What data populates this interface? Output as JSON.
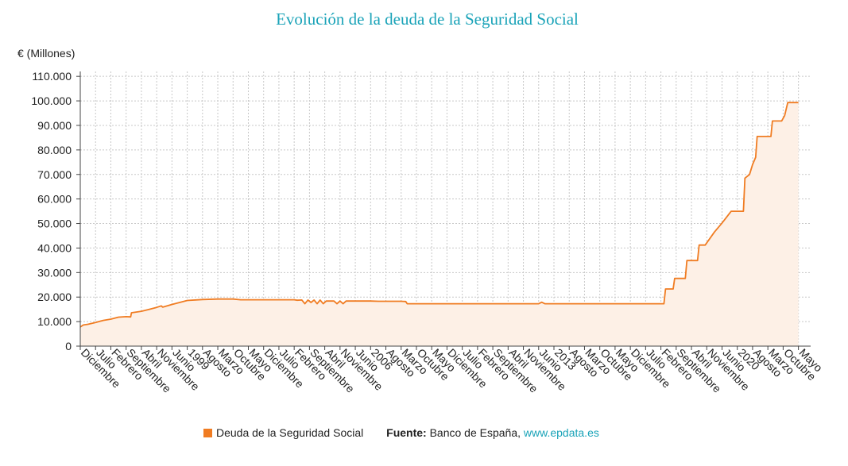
{
  "chart_data": {
    "type": "area",
    "title": "Evolución de la deuda de la Seguridad Social",
    "ylabel": "€ (Millones)",
    "ylim": [
      0,
      112000
    ],
    "yticks": [
      0,
      10000,
      20000,
      30000,
      40000,
      50000,
      60000,
      70000,
      80000,
      90000,
      100000,
      110000
    ],
    "ytick_labels": [
      "0",
      "10.000",
      "20.000",
      "30.000",
      "40.000",
      "50.000",
      "60.000",
      "70.000",
      "80.000",
      "90.000",
      "100.000",
      "110.000"
    ],
    "x_tick_labels": [
      "Diciembre",
      "Julio",
      "Febrero",
      "Septiembre",
      "Abril",
      "Noviembre",
      "Junio",
      "1999",
      "Agosto",
      "Marzo",
      "Octubre",
      "Mayo",
      "Diciembre",
      "Julio",
      "Febrero",
      "Septiembre",
      "Abril",
      "Noviembre",
      "Junio",
      "2006",
      "Agosto",
      "Marzo",
      "Octubre",
      "Mayo",
      "Diciembre",
      "Julio",
      "Febrero",
      "Septiembre",
      "Abril",
      "Noviembre",
      "Junio",
      "2013",
      "Agosto",
      "Marzo",
      "Octubre",
      "Mayo",
      "Diciembre",
      "Julio",
      "Febrero",
      "Septiembre",
      "Abril",
      "Noviembre",
      "Junio",
      "2020",
      "Agosto",
      "Marzo",
      "Octubre",
      "Mayo"
    ],
    "xlim": [
      0,
      47.8
    ],
    "series": [
      {
        "name": "Deuda de la Seguridad Social",
        "color": "#f07c22",
        "fill": "#fdf0e6",
        "points": [
          [
            0,
            7800
          ],
          [
            0.2,
            8600
          ],
          [
            0.5,
            8900
          ],
          [
            1.0,
            9600
          ],
          [
            1.5,
            10500
          ],
          [
            2.0,
            11000
          ],
          [
            2.5,
            11800
          ],
          [
            3.0,
            12000
          ],
          [
            3.3,
            11900
          ],
          [
            3.35,
            13600
          ],
          [
            4.0,
            14200
          ],
          [
            4.5,
            15000
          ],
          [
            5.0,
            15800
          ],
          [
            5.3,
            16400
          ],
          [
            5.4,
            15900
          ],
          [
            6.0,
            17000
          ],
          [
            6.5,
            17800
          ],
          [
            7.0,
            18600
          ],
          [
            8.0,
            19000
          ],
          [
            9.0,
            19200
          ],
          [
            10.0,
            19200
          ],
          [
            10.5,
            18900
          ],
          [
            12.0,
            18900
          ],
          [
            14.0,
            18900
          ],
          [
            14.2,
            18700
          ],
          [
            14.5,
            18800
          ],
          [
            14.7,
            17300
          ],
          [
            14.9,
            18800
          ],
          [
            15.1,
            17800
          ],
          [
            15.3,
            18800
          ],
          [
            15.5,
            17300
          ],
          [
            15.7,
            18800
          ],
          [
            15.9,
            17300
          ],
          [
            16.1,
            18400
          ],
          [
            16.6,
            18400
          ],
          [
            16.8,
            17300
          ],
          [
            17.0,
            18400
          ],
          [
            17.2,
            17300
          ],
          [
            17.4,
            18400
          ],
          [
            19.0,
            18400
          ],
          [
            19.5,
            18300
          ],
          [
            21.0,
            18300
          ],
          [
            21.3,
            18200
          ],
          [
            21.4,
            17300
          ],
          [
            28.0,
            17300
          ],
          [
            30.0,
            17300
          ],
          [
            30.2,
            17900
          ],
          [
            30.4,
            17300
          ],
          [
            35.0,
            17300
          ],
          [
            38.2,
            17300
          ],
          [
            38.3,
            23300
          ],
          [
            38.8,
            23300
          ],
          [
            38.9,
            27600
          ],
          [
            39.6,
            27600
          ],
          [
            39.7,
            34900
          ],
          [
            40.4,
            34900
          ],
          [
            40.5,
            41200
          ],
          [
            40.9,
            41200
          ],
          [
            41.5,
            46500
          ],
          [
            42.0,
            50200
          ],
          [
            42.6,
            55000
          ],
          [
            43.4,
            55000
          ],
          [
            43.5,
            68500
          ],
          [
            43.8,
            70000
          ],
          [
            44.0,
            74000
          ],
          [
            44.2,
            77000
          ],
          [
            44.3,
            85500
          ],
          [
            45.2,
            85500
          ],
          [
            45.3,
            91800
          ],
          [
            45.9,
            91800
          ],
          [
            46.1,
            94000
          ],
          [
            46.3,
            99300
          ],
          [
            47.0,
            99300
          ]
        ]
      }
    ]
  },
  "legend": {
    "series_label": "Deuda de la Seguridad Social",
    "source_label": "Fuente:",
    "source_text": "Banco de España,",
    "source_link": "www.epdata.es",
    "swatch_color": "#f07c22"
  }
}
